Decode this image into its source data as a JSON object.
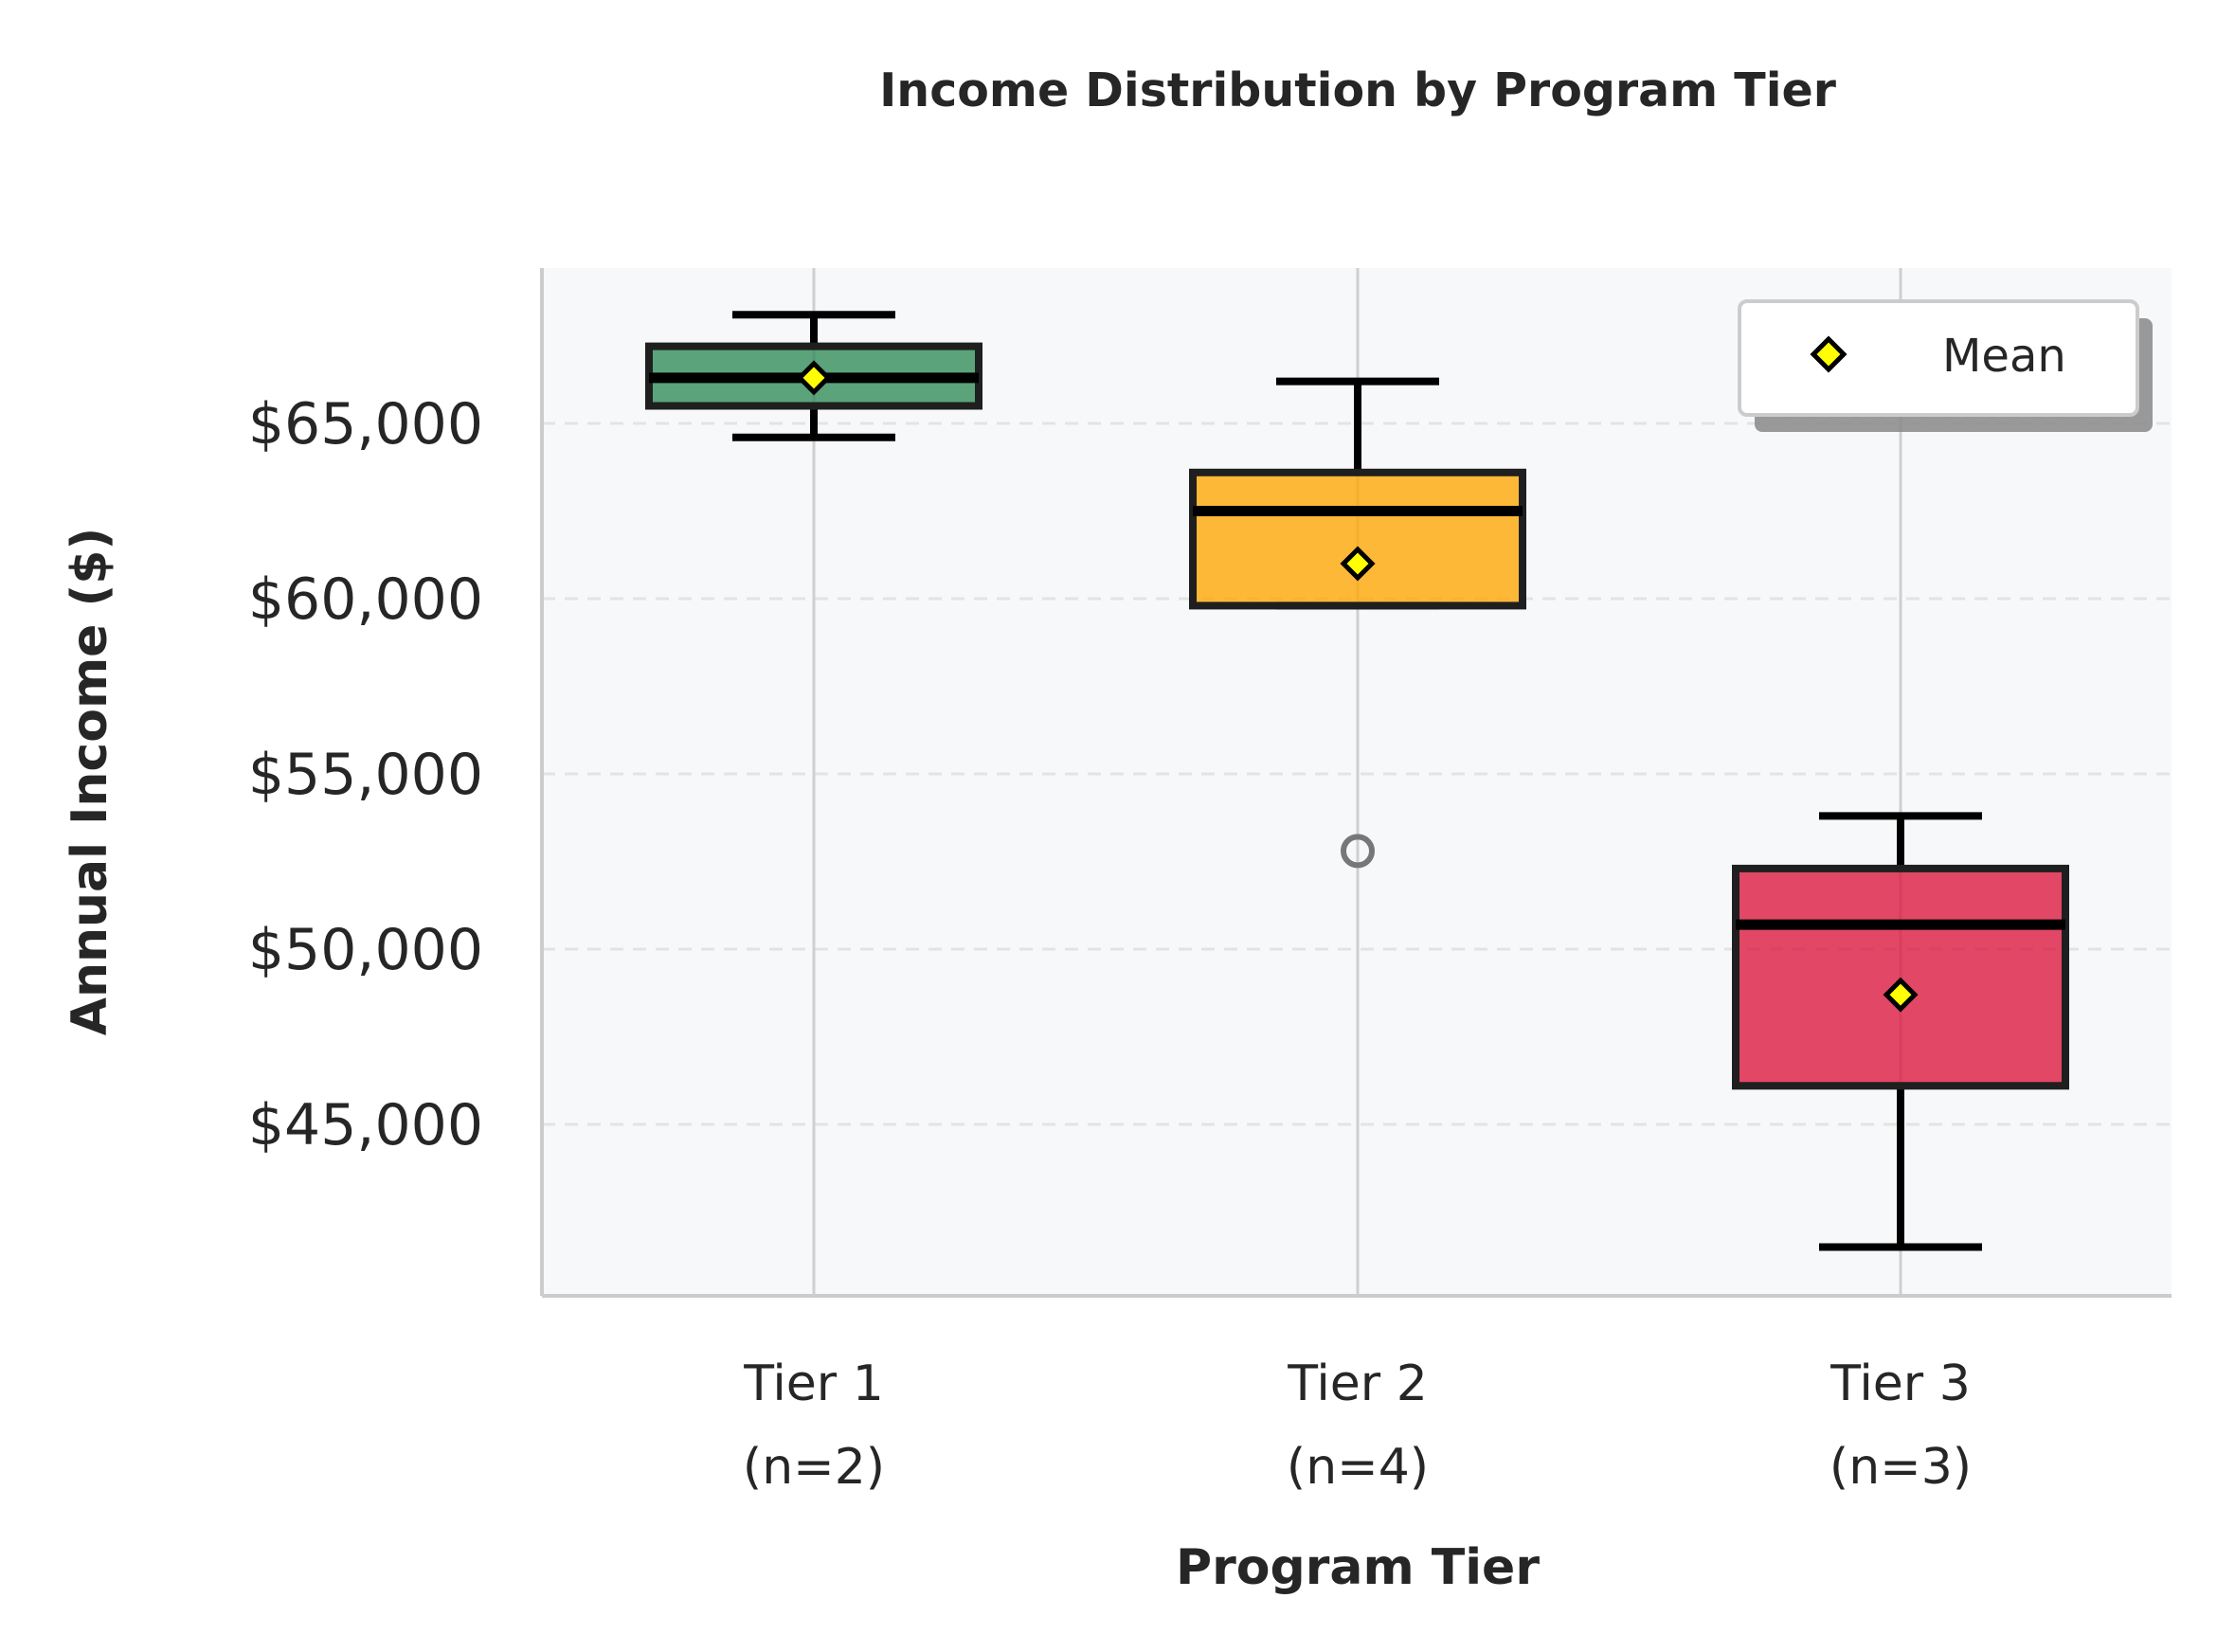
{
  "chart_data": {
    "type": "box",
    "title": "Income Distribution by Program Tier",
    "xlabel": "Program Tier",
    "ylabel": "Annual Income ($)",
    "ylim": [
      40500,
      69800
    ],
    "yticks": [
      45000,
      50000,
      55000,
      60000,
      65000
    ],
    "ytick_labels": [
      "$45,000",
      "$50,000",
      "$55,000",
      "$60,000",
      "$65,000"
    ],
    "grid": "horizontal dashed",
    "legend": {
      "placement": "top-right",
      "label": "Mean"
    },
    "categories": [
      {
        "label_line1": "Tier 1",
        "label_line2": "(n=2)",
        "color": "#2e8b57",
        "whisker_low": 64600,
        "q1": 65500,
        "median": 66300,
        "q3": 67200,
        "whisker_high": 68100,
        "mean": 66300,
        "outliers": []
      },
      {
        "label_line1": "Tier 2",
        "label_line2": "(n=4)",
        "color": "#ffa500",
        "whisker_low": 59800,
        "q1": 59800,
        "median": 62500,
        "q3": 63600,
        "whisker_high": 66200,
        "mean": 61000,
        "outliers": [
          52800
        ]
      },
      {
        "label_line1": "Tier 3",
        "label_line2": "(n=3)",
        "color": "#dc143c",
        "whisker_low": 41500,
        "q1": 46100,
        "median": 50700,
        "q3": 52300,
        "whisker_high": 53800,
        "mean": 48700,
        "outliers": []
      }
    ]
  }
}
